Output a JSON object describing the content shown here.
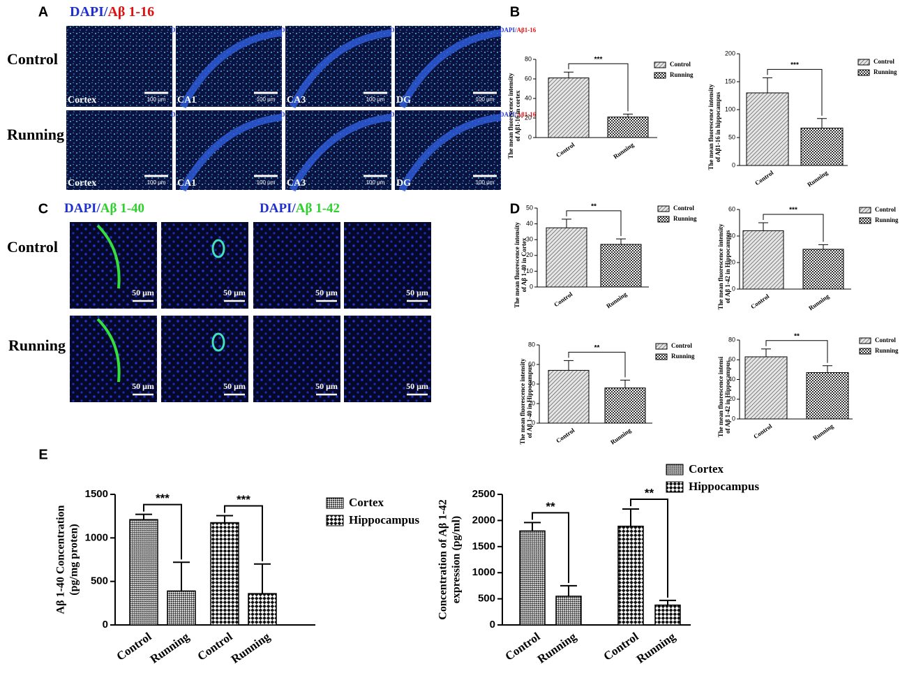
{
  "figure": {
    "panel_letters": [
      "A",
      "B",
      "C",
      "D",
      "E"
    ],
    "a": {
      "stain": "DAPI/",
      "marker": "Aβ 1-16",
      "rows": [
        "Control",
        "Running"
      ],
      "regions": [
        "Cortex",
        "CA1",
        "CA3",
        "DG"
      ],
      "scale": "100 μm",
      "overlay_stain": "DAPI/",
      "overlay_marker": "Aβ1-16"
    },
    "c": {
      "titles": [
        {
          "stain": "DAPI/",
          "marker": "Aβ 1-40"
        },
        {
          "stain": "DAPI/",
          "marker": "Aβ 1-42"
        }
      ],
      "rows": [
        "Control",
        "Running"
      ],
      "scale": "50 μm"
    }
  },
  "chart_data": [
    {
      "type": "bar",
      "ylabel": [
        "The mean fluorescence intensity",
        "of Aβ1-16 in cortex"
      ],
      "categories": [
        "Control",
        "Running"
      ],
      "values": [
        61,
        21
      ],
      "errors": [
        6,
        3
      ],
      "patterns": [
        "hatch",
        "checker"
      ],
      "ylim": [
        0,
        80
      ],
      "yticks": [
        0,
        20,
        40,
        60,
        80
      ],
      "significance": "***"
    },
    {
      "type": "bar",
      "ylabel": [
        "The mean  fluorescence intensity",
        "of Aβ1-16 in hippocampus"
      ],
      "categories": [
        "Control",
        "Running"
      ],
      "values": [
        130,
        67
      ],
      "errors": [
        27,
        17
      ],
      "patterns": [
        "hatch",
        "checker"
      ],
      "ylim": [
        0,
        200
      ],
      "yticks": [
        0,
        50,
        100,
        150,
        200
      ],
      "significance": "***"
    },
    {
      "type": "bar",
      "ylabel": [
        "The mean fluorescence intensity",
        "of Aβ 1-40 in Cortex"
      ],
      "categories": [
        "Control",
        "Running"
      ],
      "values": [
        37.5,
        27
      ],
      "errors": [
        5.5,
        3.5
      ],
      "patterns": [
        "hatch",
        "checker"
      ],
      "ylim": [
        0,
        50
      ],
      "yticks": [
        0,
        10,
        20,
        30,
        40,
        50
      ],
      "significance": "**"
    },
    {
      "type": "bar",
      "ylabel": [
        "The mean fluorescence intensity",
        "of Aβ 1-42 in Hippocampus"
      ],
      "categories": [
        "Control",
        "Running"
      ],
      "values": [
        44,
        30
      ],
      "errors": [
        6,
        3.5
      ],
      "patterns": [
        "hatch",
        "checker"
      ],
      "ylim": [
        0,
        60
      ],
      "yticks": [
        0,
        20,
        40,
        60
      ],
      "significance": "***"
    },
    {
      "type": "bar",
      "ylabel": [
        "The mean fluorescence intensity",
        "of Aβ 1-40 in Hippocampus"
      ],
      "categories": [
        "Control",
        "Running"
      ],
      "values": [
        54,
        36
      ],
      "errors": [
        10,
        8
      ],
      "patterns": [
        "hatch",
        "checker"
      ],
      "ylim": [
        0,
        80
      ],
      "yticks": [
        0,
        20,
        40,
        60,
        80
      ],
      "significance": "**"
    },
    {
      "type": "bar",
      "ylabel": [
        "The mean fluorescence intensi",
        "of Aβ 1-42 in Hippocampus"
      ],
      "categories": [
        "Control",
        "Running"
      ],
      "values": [
        63,
        47
      ],
      "errors": [
        8,
        7
      ],
      "patterns": [
        "hatch",
        "checker"
      ],
      "ylim": [
        0,
        80
      ],
      "yticks": [
        0,
        20,
        40,
        60,
        80
      ],
      "significance": "**"
    },
    {
      "type": "grouped_bar",
      "ylabel": [
        "Aβ 1-40 Concentration",
        "(pg/mg proten)"
      ],
      "categories": [
        "Control",
        "Running"
      ],
      "series": [
        {
          "name": "Cortex",
          "pattern": "fine-checker",
          "values": [
            1210,
            390
          ],
          "errors": [
            60,
            330
          ]
        },
        {
          "name": "Hippocampus",
          "pattern": "checker-large",
          "values": [
            1175,
            360
          ],
          "errors": [
            80,
            340
          ]
        }
      ],
      "ylim": [
        0,
        1500
      ],
      "yticks": [
        0,
        500,
        1000,
        1500
      ],
      "significance": [
        "***",
        "***"
      ]
    },
    {
      "type": "grouped_bar",
      "ylabel": [
        "Concentration of Aβ 1-42",
        "expression  (pg/ml)"
      ],
      "categories": [
        "Control",
        "Running"
      ],
      "series": [
        {
          "name": "Cortex",
          "pattern": "fine-checker",
          "values": [
            1800,
            550
          ],
          "errors": [
            160,
            200
          ]
        },
        {
          "name": "Hippocampus",
          "pattern": "checker-large",
          "values": [
            1890,
            380
          ],
          "errors": [
            330,
            90
          ]
        }
      ],
      "ylim": [
        0,
        2500
      ],
      "yticks": [
        0,
        500,
        1000,
        1500,
        2000,
        2500
      ],
      "significance": [
        "**",
        "**"
      ]
    }
  ]
}
